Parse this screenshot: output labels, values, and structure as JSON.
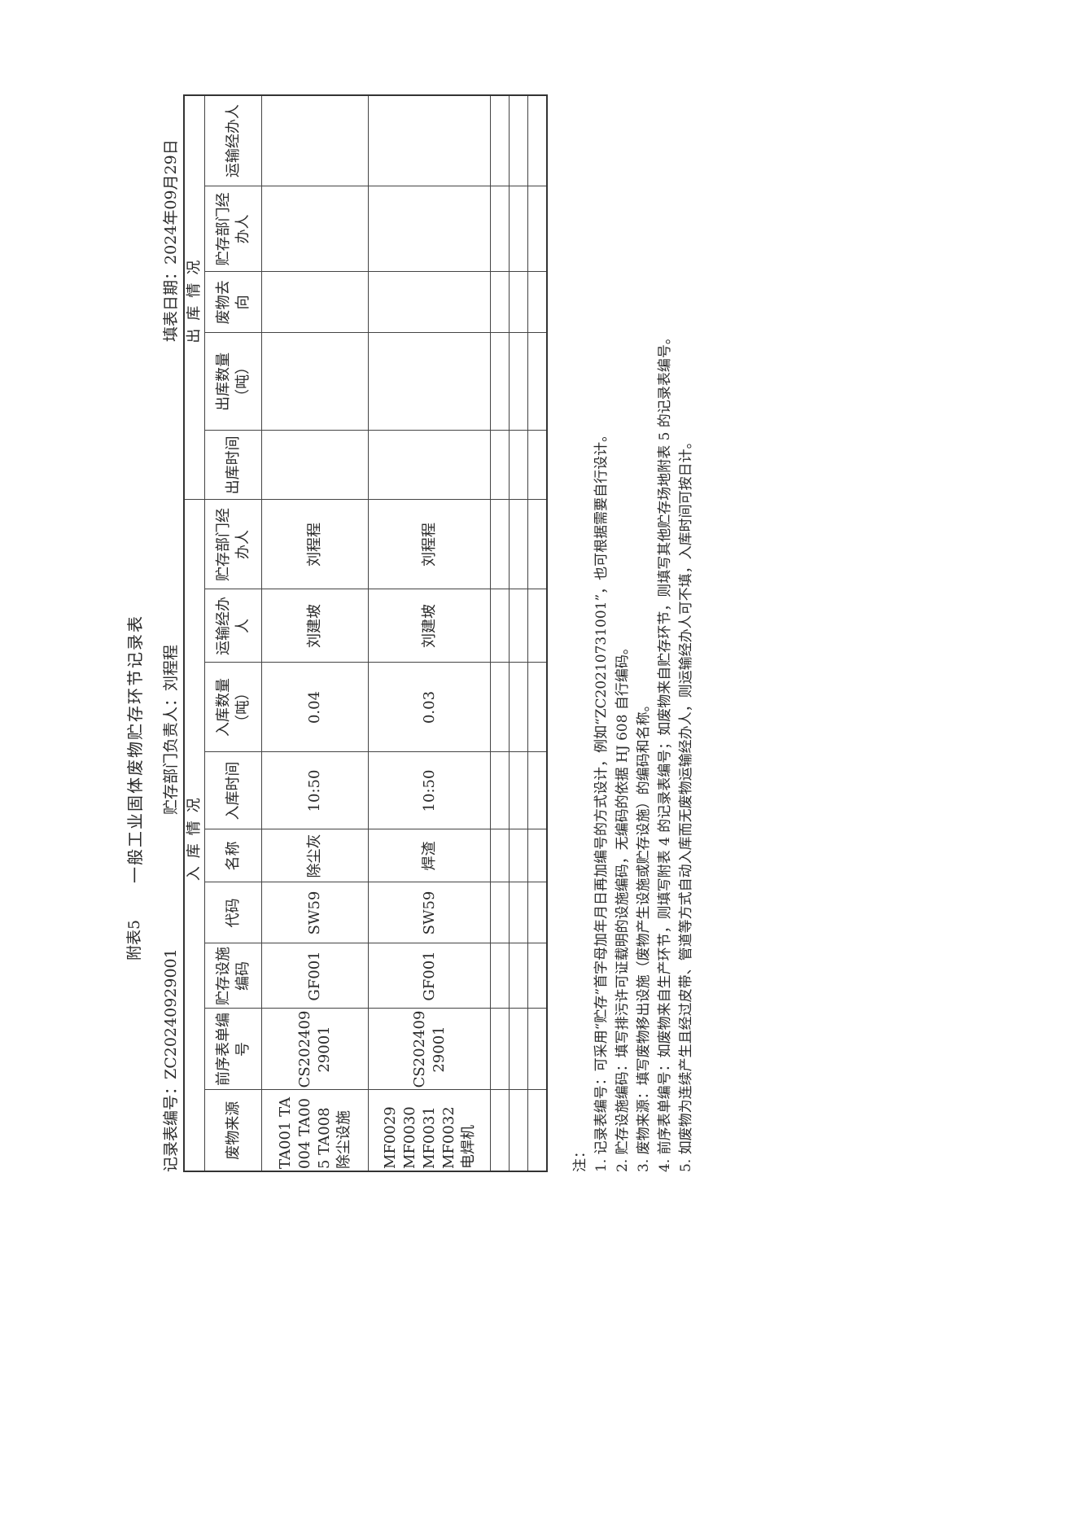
{
  "appendix": "附表5",
  "title": "一般工业固体废物贮存环节记录表",
  "record_no_label": "记录表编号：",
  "record_no": "ZC20240929001",
  "responsible_label": "贮存部门负责人：",
  "responsible": "刘程程",
  "date_label": "填表日期：",
  "date": "2024年09月29日",
  "groups": {
    "in": "入库情况",
    "out": "出库情况"
  },
  "headers": [
    "废物来源",
    "前序表单编号",
    "贮存设施编码",
    "代码",
    "名称",
    "入库时间",
    "入库数量（吨）",
    "运输经办人",
    "贮存部门经办人",
    "出库时间",
    "出库数量（吨）",
    "废物去向",
    "贮存部门经办人",
    "运输经办人"
  ],
  "rows": [
    {
      "source": "TA001 TA004 TA005 TA008 除尘设施",
      "prev_no": "CS20240929001",
      "facility": "GF001",
      "code": "SW59",
      "name": "除尘灰",
      "in_time": "10:50",
      "in_qty": "0.04",
      "transport": "刘建坡",
      "keeper": "刘程程"
    },
    {
      "source": "MF0029 MF0030 MF0031 MF0032 电焊机",
      "prev_no": "CS20240929001",
      "facility": "GF001",
      "code": "SW59",
      "name": "焊渣",
      "in_time": "10:50",
      "in_qty": "0.03",
      "transport": "刘建坡",
      "keeper": "刘程程"
    }
  ],
  "notes": [
    "注：",
    "1. 记录表编号：可采用“贮存”首字母加年月日再加编号的方式设计，例如“ZC20210731001”，也可根据需要自行设计。",
    "2. 贮存设施编码：填写排污许可证载明的设施编码，无编码的依据 HJ 608 自行编码。",
    "3. 废物来源：填写废物移出设施（废物产生设施或贮存设施）的编码和名称。",
    "4. 前序表单编号：如废物来自生产环节，则填写附表 4 的记录表编号；如废物来自贮存环节，则填写其他贮存场地附表 5 的记录表编号。",
    "5. 如废物为连续产生且经过皮带、管道等方式自动入库而无废物运输经办人，则运输经办人可不填，入库时间可按日计。"
  ]
}
